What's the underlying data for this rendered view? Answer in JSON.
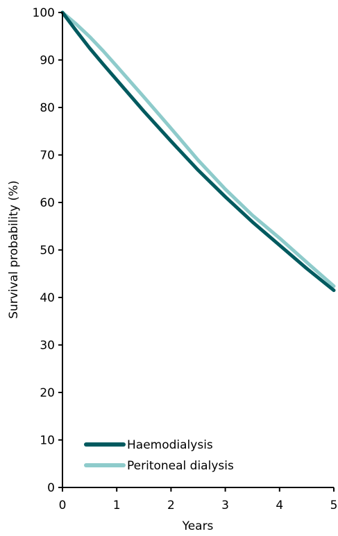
{
  "chart_data": {
    "type": "line",
    "title": "",
    "xlabel": "Years",
    "ylabel": "Survival probability (%)",
    "xlim": [
      0,
      5
    ],
    "ylim": [
      0,
      100
    ],
    "x_ticks": [
      0,
      1,
      2,
      3,
      4,
      5
    ],
    "y_ticks": [
      0,
      10,
      20,
      30,
      40,
      50,
      60,
      70,
      80,
      90,
      100
    ],
    "grid": false,
    "legend_position": "bottom-left",
    "x": [
      0,
      0.25,
      0.5,
      0.75,
      1,
      1.5,
      2,
      2.5,
      3,
      3.5,
      4,
      4.5,
      5
    ],
    "series": [
      {
        "name": "Haemodialysis",
        "color": "#005a5f",
        "values": [
          100,
          96.2,
          92.5,
          89.1,
          85.8,
          79.2,
          72.9,
          66.8,
          61.2,
          55.9,
          51.0,
          46.1,
          41.5
        ]
      },
      {
        "name": "Peritoneal dialysis",
        "color": "#8ecbcb",
        "values": [
          100,
          97.6,
          94.9,
          91.9,
          88.7,
          82.2,
          75.6,
          68.9,
          62.8,
          57.3,
          52.5,
          47.4,
          42.4
        ]
      }
    ]
  }
}
